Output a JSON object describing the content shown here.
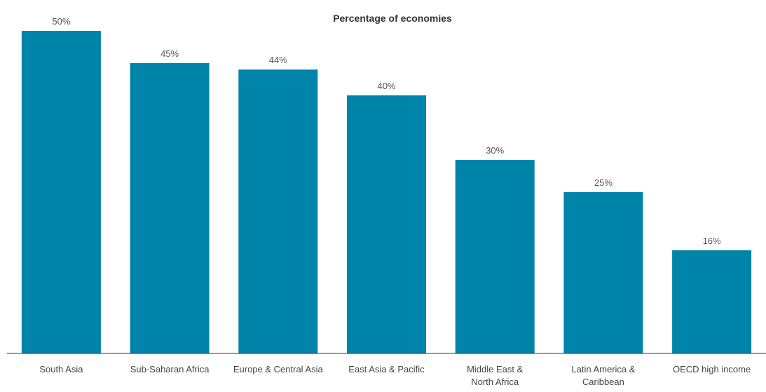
{
  "chart_data": {
    "type": "bar",
    "title": "Percentage of economies",
    "categories": [
      "South Asia",
      "Sub-Saharan Africa",
      "Europe & Central Asia",
      "East Asia & Pacific",
      "Middle East & North Africa",
      "Latin America & Caribbean",
      "OECD high income"
    ],
    "category_lines": [
      [
        "South Asia"
      ],
      [
        "Sub-Saharan Africa"
      ],
      [
        "Europe & Central Asia"
      ],
      [
        "East Asia & Pacific"
      ],
      [
        "Middle East &",
        "North Africa"
      ],
      [
        "Latin America &",
        "Caribbean"
      ],
      [
        "OECD high income"
      ]
    ],
    "values": [
      50,
      45,
      44,
      40,
      30,
      25,
      16
    ],
    "value_labels": [
      "50%",
      "45%",
      "44%",
      "40%",
      "30%",
      "25%",
      "16%"
    ],
    "xlabel": "",
    "ylabel": "",
    "ylim": [
      0,
      50
    ],
    "grid": false,
    "legend": "none",
    "bar_color": "#0084A9",
    "axis_color": "#333333"
  }
}
